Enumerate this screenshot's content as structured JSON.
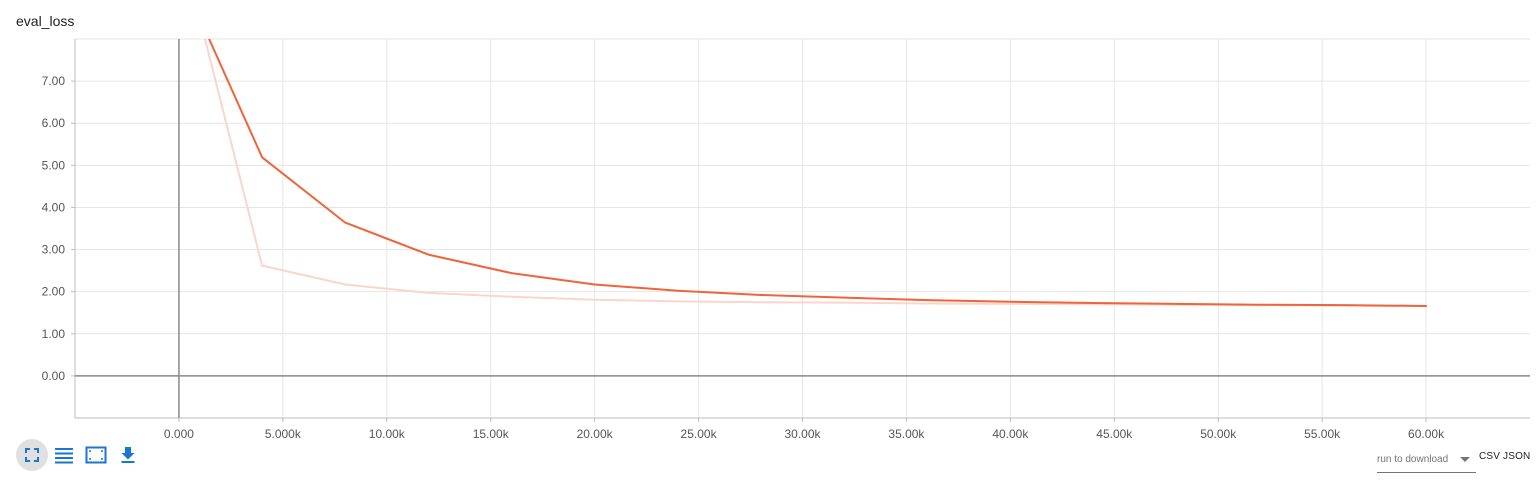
{
  "chart_data": {
    "type": "line",
    "title": "eval_loss",
    "xlim": [
      -5000,
      65000
    ],
    "ylim": [
      -1,
      8
    ],
    "x_ticks": [
      0,
      5000,
      10000,
      15000,
      20000,
      25000,
      30000,
      35000,
      40000,
      45000,
      50000,
      55000,
      60000
    ],
    "x_tick_labels": [
      "0.000",
      "5.000k",
      "10.00k",
      "15.00k",
      "20.00k",
      "25.00k",
      "30.00k",
      "35.00k",
      "40.00k",
      "45.00k",
      "50.00k",
      "55.00k",
      "60.00k"
    ],
    "y_ticks": [
      0,
      1,
      2,
      3,
      4,
      5,
      6,
      7
    ],
    "y_tick_labels": [
      "0.00",
      "1.00",
      "2.00",
      "3.00",
      "4.00",
      "5.00",
      "6.00",
      "7.00"
    ],
    "grid": true,
    "series": [
      {
        "role": "raw",
        "color": "#fbd5cb",
        "x": [
          1000,
          4000,
          8000,
          12000,
          16000,
          20000,
          24000,
          28000,
          32000,
          36000,
          40000,
          44000,
          48000,
          52000,
          56000,
          60000
        ],
        "y": [
          8.5,
          2.62,
          2.17,
          1.97,
          1.88,
          1.81,
          1.77,
          1.75,
          1.74,
          1.72,
          1.71,
          1.7,
          1.69,
          1.68,
          1.67,
          1.66
        ]
      },
      {
        "role": "smoothed",
        "color": "#f0643a",
        "x": [
          1000,
          4000,
          8000,
          12000,
          16000,
          20000,
          24000,
          28000,
          32000,
          36000,
          40000,
          44000,
          48000,
          52000,
          56000,
          60000
        ],
        "y": [
          8.5,
          5.19,
          3.64,
          2.88,
          2.44,
          2.17,
          2.02,
          1.92,
          1.86,
          1.8,
          1.76,
          1.73,
          1.71,
          1.69,
          1.68,
          1.66
        ]
      }
    ]
  },
  "toolbar": {
    "buttons": [
      {
        "icon": "fullscreen-icon",
        "active": true
      },
      {
        "icon": "toggle-log-scale-icon",
        "active": false
      },
      {
        "icon": "fit-domain-icon",
        "active": false
      },
      {
        "icon": "download-icon",
        "active": false
      }
    ]
  },
  "download": {
    "run_select_placeholder": "run to download",
    "csv_label": "CSV",
    "json_label": "JSON"
  },
  "colors": {
    "accent": "#f0643a",
    "raw_line": "#fbd5cb",
    "icon_blue": "#1976d2"
  }
}
